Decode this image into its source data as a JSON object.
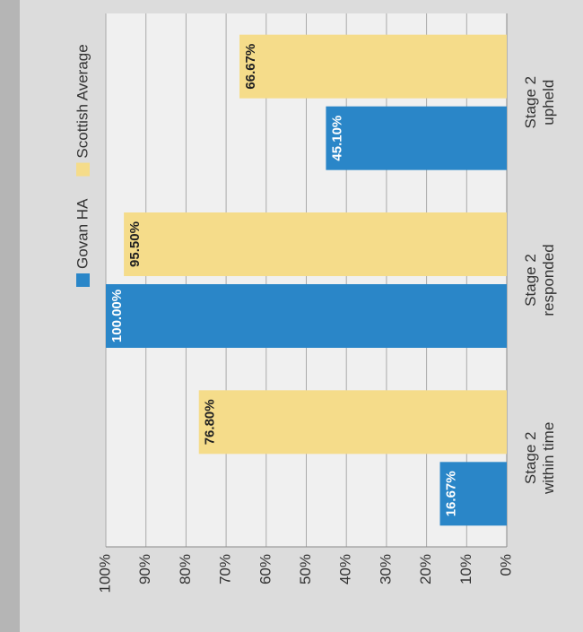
{
  "chart_data": {
    "type": "bar",
    "categories": [
      [
        "Stage 2",
        "within time"
      ],
      [
        "Stage 2",
        "responded"
      ],
      [
        "Stage 2",
        "upheld"
      ]
    ],
    "series": [
      {
        "name": "Govan HA",
        "color": "#2a86c8",
        "values": [
          16.67,
          100,
          45.1
        ],
        "value_labels": [
          "16.67%",
          "100.00%",
          "45.10%"
        ]
      },
      {
        "name": "Scottish Average",
        "color": "#f5dc8a",
        "values": [
          76.8,
          95.5,
          66.67
        ],
        "value_labels": [
          "76.80%",
          "95.50%",
          "66.67%"
        ]
      }
    ],
    "ylim": [
      0,
      100
    ],
    "yticks": [
      {
        "value": 0,
        "label": "0%"
      },
      {
        "value": 10,
        "label": "10%"
      },
      {
        "value": 20,
        "label": "20%"
      },
      {
        "value": 30,
        "label": "30%"
      },
      {
        "value": 40,
        "label": "40%"
      },
      {
        "value": 50,
        "label": "50%"
      },
      {
        "value": 60,
        "label": "60%"
      },
      {
        "value": 70,
        "label": "70%"
      },
      {
        "value": 80,
        "label": "80%"
      },
      {
        "value": 90,
        "label": "90%"
      },
      {
        "value": 100,
        "label": "100%"
      }
    ],
    "grid": true,
    "legend": "top-right"
  }
}
